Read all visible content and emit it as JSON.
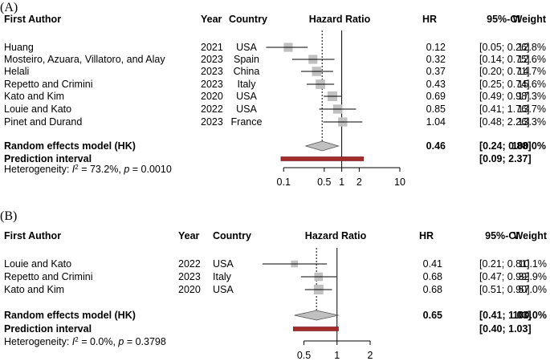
{
  "chart_data": [
    {
      "type": "forest",
      "panel_label": "(A)",
      "columns": {
        "author": "First Author",
        "year": "Year",
        "country": "Country",
        "plot": "Hazard Ratio",
        "hr": "HR",
        "ci": "95%-CI",
        "weight": "Weight"
      },
      "x_scale": "log",
      "xlim": [
        0.07,
        10
      ],
      "ticks": [
        0.1,
        0.5,
        1,
        2,
        10
      ],
      "tick_labels": [
        "0.1",
        "0.5",
        "1",
        "2",
        "10"
      ],
      "studies": [
        {
          "author": "Huang",
          "year": "2021",
          "country": "USA",
          "hr": 0.12,
          "lo": 0.05,
          "hi": 0.26,
          "hr_text": "0.12",
          "ci_text": "[0.05; 0.26]",
          "weight_text": "12.8%",
          "weight": 12.8
        },
        {
          "author": "Mosteiro, Azuara, Villatoro, and Alay",
          "year": "2023",
          "country": "Spain",
          "hr": 0.32,
          "lo": 0.14,
          "hi": 0.75,
          "hr_text": "0.32",
          "ci_text": "[0.14; 0.75]",
          "weight_text": "12.6%",
          "weight": 12.6
        },
        {
          "author": "Helali",
          "year": "2023",
          "country": "China",
          "hr": 0.37,
          "lo": 0.2,
          "hi": 0.71,
          "hr_text": "0.37",
          "ci_text": "[0.20; 0.71]",
          "weight_text": "14.7%",
          "weight": 14.7
        },
        {
          "author": "Repetto and Crimini",
          "year": "2023",
          "country": "Italy",
          "hr": 0.43,
          "lo": 0.25,
          "hi": 0.74,
          "hr_text": "0.43",
          "ci_text": "[0.25; 0.74]",
          "weight_text": "15.6%",
          "weight": 15.6
        },
        {
          "author": "Kato and Kim",
          "year": "2020",
          "country": "USA",
          "hr": 0.69,
          "lo": 0.49,
          "hi": 0.98,
          "hr_text": "0.69",
          "ci_text": "[0.49; 0.98]",
          "weight_text": "17.3%",
          "weight": 17.3
        },
        {
          "author": "Louie and Kato",
          "year": "2022",
          "country": "USA",
          "hr": 0.85,
          "lo": 0.41,
          "hi": 1.76,
          "hr_text": "0.85",
          "ci_text": "[0.41; 1.76]",
          "weight_text": "13.7%",
          "weight": 13.7
        },
        {
          "author": "Pinet and Durand",
          "year": "2023",
          "country": "France",
          "hr": 1.04,
          "lo": 0.48,
          "hi": 2.26,
          "hr_text": "1.04",
          "ci_text": "[0.48; 2.26]",
          "weight_text": "13.3%",
          "weight": 13.3
        }
      ],
      "pooled": {
        "label": "Random effects model (HK)",
        "hr": 0.46,
        "lo": 0.24,
        "hi": 0.88,
        "hr_text": "0.46",
        "ci_text": "[0.24; 0.88]",
        "weight_text": "100.0%"
      },
      "prediction": {
        "label": "Prediction interval",
        "lo": 0.09,
        "hi": 2.37,
        "ci_text": "[0.09; 2.37]"
      },
      "heterogeneity": {
        "prefix": "Heterogeneity: ",
        "i2_symbol": "I",
        "i2_sup": "2",
        "i2_text": " = 73.2%, ",
        "p_symbol": "p",
        "p_text": " = 0.0010"
      },
      "colors": {
        "box": "#c0c0c0",
        "diamond": "#c0c0c0",
        "prediction": "#a52a2a",
        "line": "#000000"
      }
    },
    {
      "type": "forest",
      "panel_label": "(B)",
      "columns": {
        "author": "First Author",
        "year": "Year",
        "country": "Country",
        "plot": "Hazard Ratio",
        "hr": "HR",
        "ci": "95%-CI",
        "weight": "Weight"
      },
      "x_scale": "log",
      "xlim": [
        0.2,
        2
      ],
      "ticks": [
        0.5,
        1,
        2
      ],
      "tick_labels": [
        "0.5",
        "1",
        "2"
      ],
      "studies": [
        {
          "author": "Louie and Kato",
          "year": "2022",
          "country": "USA",
          "hr": 0.41,
          "lo": 0.21,
          "hi": 0.81,
          "hr_text": "0.41",
          "ci_text": "[0.21; 0.81]",
          "weight_text": "10.1%",
          "weight": 10.1
        },
        {
          "author": "Repetto and Crimini",
          "year": "2023",
          "country": "Italy",
          "hr": 0.68,
          "lo": 0.47,
          "hi": 0.99,
          "hr_text": "0.68",
          "ci_text": "[0.47; 0.99]",
          "weight_text": "32.9%",
          "weight": 32.9
        },
        {
          "author": "Kato and Kim",
          "year": "2020",
          "country": "USA",
          "hr": 0.68,
          "lo": 0.51,
          "hi": 0.9,
          "hr_text": "0.68",
          "ci_text": "[0.51; 0.90]",
          "weight_text": "57.0%",
          "weight": 57.0
        }
      ],
      "pooled": {
        "label": "Random effects model (HK)",
        "hr": 0.65,
        "lo": 0.41,
        "hi": 1.03,
        "hr_text": "0.65",
        "ci_text": "[0.41; 1.03]",
        "weight_text": "100.0%"
      },
      "prediction": {
        "label": "Prediction interval",
        "lo": 0.4,
        "hi": 1.03,
        "ci_text": "[0.40; 1.03]"
      },
      "heterogeneity": {
        "prefix": "Heterogeneity: ",
        "i2_symbol": "I",
        "i2_sup": "2",
        "i2_text": " = 0.0%, ",
        "p_symbol": "p",
        "p_text": " = 0.3798"
      },
      "colors": {
        "box": "#c0c0c0",
        "diamond": "#c0c0c0",
        "prediction": "#a52a2a",
        "line": "#000000"
      }
    }
  ]
}
